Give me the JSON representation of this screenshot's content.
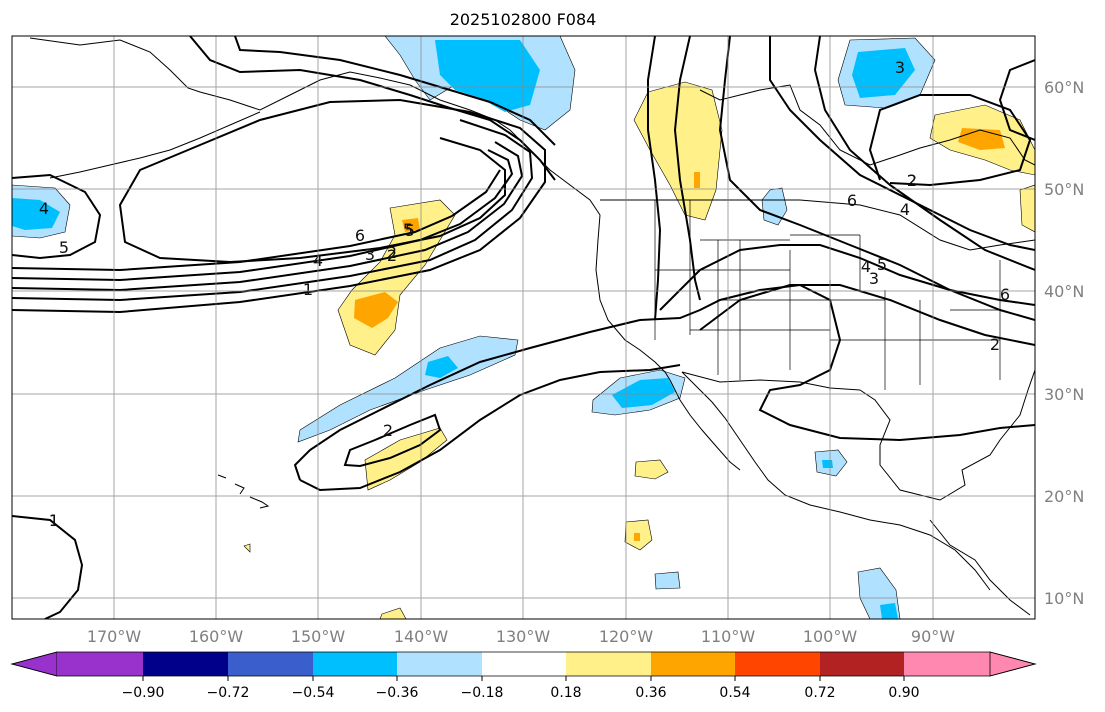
{
  "title": "2025102800 F084",
  "map": {
    "lon_labels": [
      "170°W",
      "160°W",
      "150°W",
      "140°W",
      "130°W",
      "120°W",
      "110°W",
      "100°W",
      "90°W"
    ],
    "lat_labels": [
      "60°N",
      "50°N",
      "40°N",
      "30°N",
      "20°N",
      "10°N"
    ],
    "lon_range": [
      -180,
      -80
    ],
    "lat_range": [
      8,
      65
    ],
    "gridlines": true
  },
  "colorbar": {
    "ticks": [
      "−0.90",
      "−0.72",
      "−0.54",
      "−0.36",
      "−0.18",
      "0.18",
      "0.36",
      "0.54",
      "0.72",
      "0.90"
    ],
    "colors": [
      "#9932cc",
      "#00008b",
      "#3a5fcd",
      "#00bfff",
      "#b0e2ff",
      "#ffffff",
      "#fff08a",
      "#ffa500",
      "#ff4500",
      "#b22222",
      "#ff88b0"
    ],
    "extend": "both"
  },
  "contour_labels": [
    "1",
    "2",
    "3",
    "4",
    "5",
    "6",
    "4",
    "5",
    "6",
    "5",
    "4",
    "3",
    "2",
    "1",
    "2",
    "2",
    "3",
    "2",
    "4",
    "5",
    "6",
    "2",
    "1"
  ],
  "fill_colors": {
    "light_blue": "#b0e2ff",
    "blue": "#00bfff",
    "yellow": "#fff08a",
    "orange": "#ffa500",
    "red": "#ff4500"
  }
}
